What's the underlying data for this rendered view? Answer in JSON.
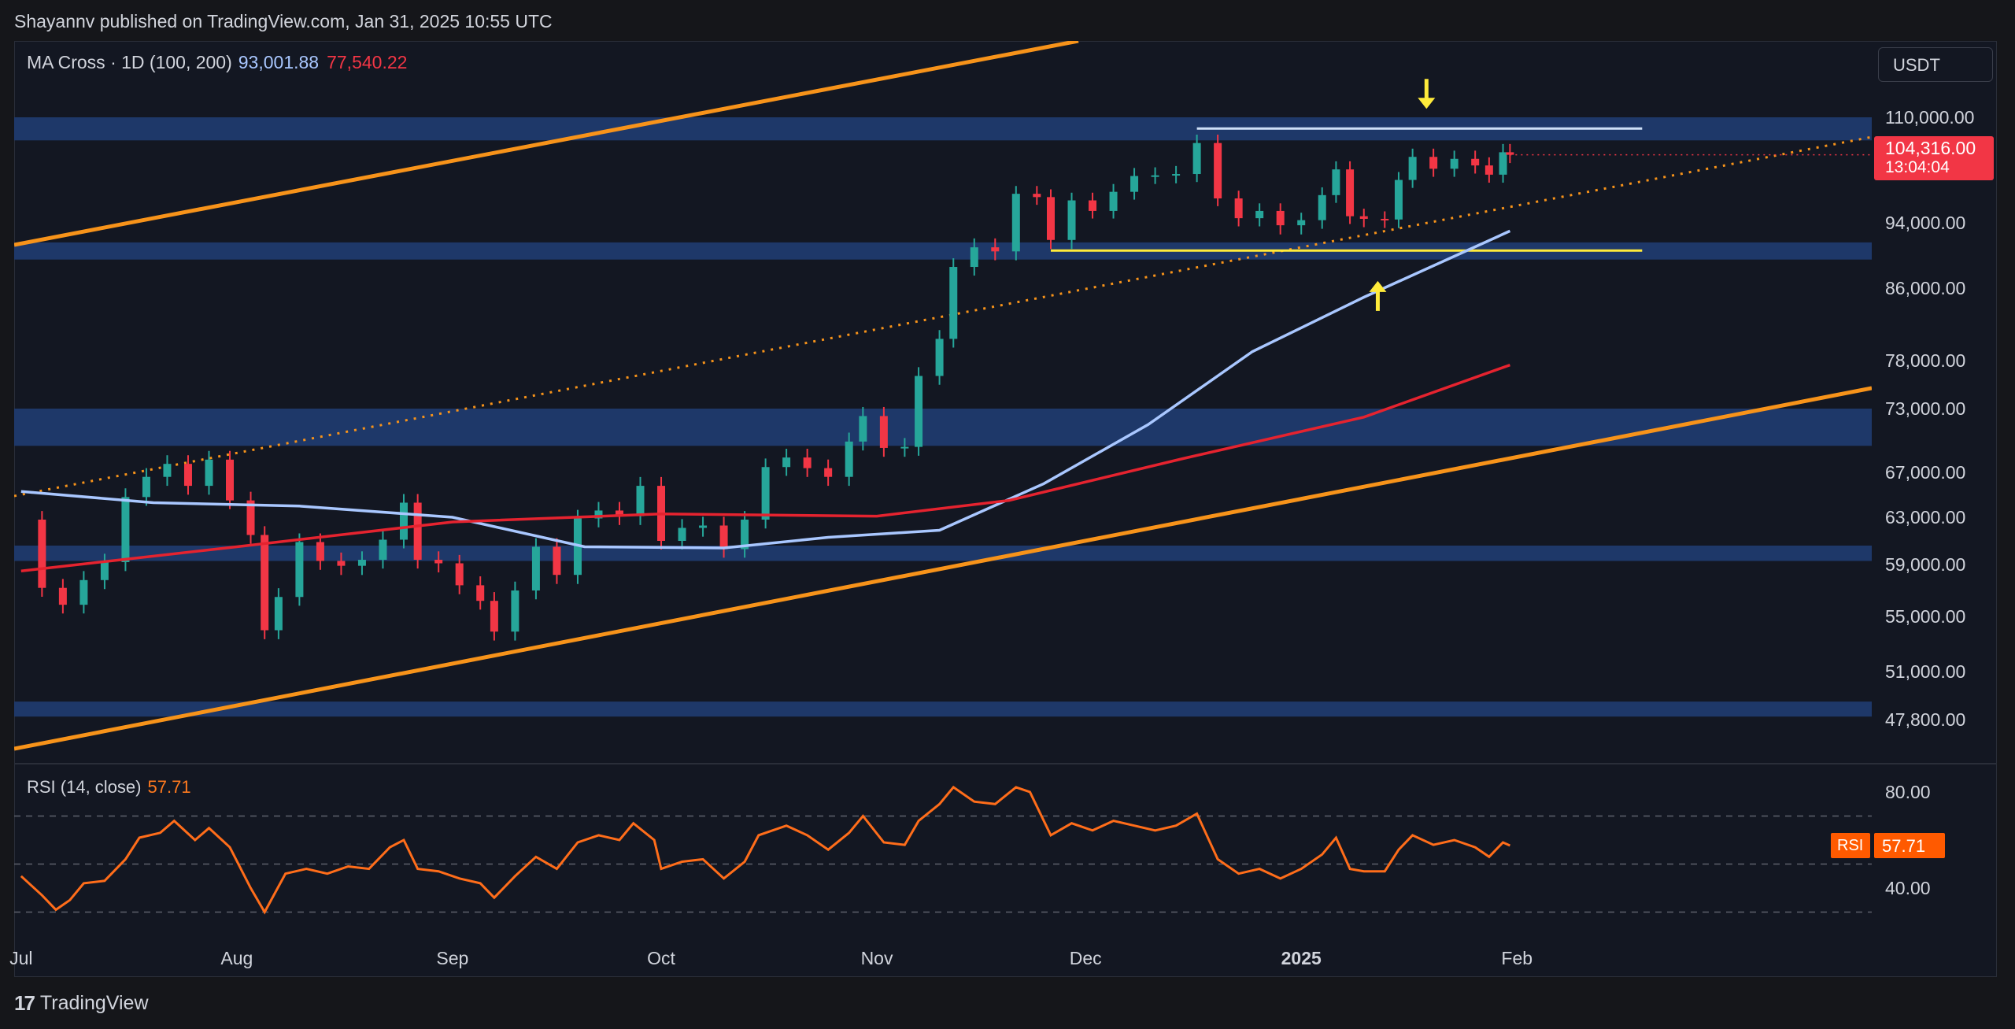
{
  "header": {
    "published_by": "Shayannv published on TradingView.com, Jan 31, 2025 10:55 UTC"
  },
  "legend": {
    "name": "MA Cross · 1D (100, 200)",
    "ma100_value": "93,001.88",
    "ma200_value": "77,540.22"
  },
  "currency_button": "USDT",
  "last_price": {
    "price": "104,316.00",
    "countdown": "13:04:04"
  },
  "rsi": {
    "name": "RSI (14, close)",
    "value": "57.71",
    "tag_label": "RSI",
    "tag_value": "57.71"
  },
  "footer": {
    "brand": "TradingView",
    "logo_glyph": "17"
  },
  "colors": {
    "up": "#26a69a",
    "down": "#f23645",
    "ma100": "#a9c7ff",
    "ma200": "#e5232f",
    "channel": "#f7931a",
    "zone": "#1f3a6e",
    "rsi_line": "#ff6d1a",
    "arrow": "#ffeb3b"
  },
  "chart_data": {
    "type": "candlestick",
    "x_ticks": [
      "Jul",
      "Aug",
      "Sep",
      "Oct",
      "Nov",
      "Dec",
      "2025",
      "Feb"
    ],
    "y_ticks": [
      "110,000.00",
      "94,000.00",
      "86,000.00",
      "78,000.00",
      "73,000.00",
      "67,000.00",
      "63,000.00",
      "59,000.00",
      "55,000.00",
      "51,000.00",
      "47,800.00"
    ],
    "y_tick_values": [
      110000,
      94000,
      86000,
      78000,
      73000,
      67000,
      63000,
      59000,
      55000,
      51000,
      47800
    ],
    "x_range": [
      "2024-06-30",
      "2025-03-24"
    ],
    "closes": [
      {
        "date": "2024-07-01",
        "close": 62800
      },
      {
        "date": "2024-07-04",
        "close": 57200
      },
      {
        "date": "2024-07-07",
        "close": 55900
      },
      {
        "date": "2024-07-10",
        "close": 57800
      },
      {
        "date": "2024-07-13",
        "close": 59200
      },
      {
        "date": "2024-07-16",
        "close": 64800
      },
      {
        "date": "2024-07-19",
        "close": 66600
      },
      {
        "date": "2024-07-22",
        "close": 67800
      },
      {
        "date": "2024-07-25",
        "close": 65800
      },
      {
        "date": "2024-07-28",
        "close": 68200
      },
      {
        "date": "2024-07-31",
        "close": 64500
      },
      {
        "date": "2024-08-03",
        "close": 61500
      },
      {
        "date": "2024-08-05",
        "close": 54000
      },
      {
        "date": "2024-08-07",
        "close": 56500
      },
      {
        "date": "2024-08-10",
        "close": 60900
      },
      {
        "date": "2024-08-13",
        "close": 59300
      },
      {
        "date": "2024-08-16",
        "close": 58900
      },
      {
        "date": "2024-08-19",
        "close": 59400
      },
      {
        "date": "2024-08-22",
        "close": 61100
      },
      {
        "date": "2024-08-25",
        "close": 64300
      },
      {
        "date": "2024-08-27",
        "close": 59400
      },
      {
        "date": "2024-08-30",
        "close": 59100
      },
      {
        "date": "2024-09-02",
        "close": 57400
      },
      {
        "date": "2024-09-05",
        "close": 56200
      },
      {
        "date": "2024-09-07",
        "close": 53900
      },
      {
        "date": "2024-09-10",
        "close": 57000
      },
      {
        "date": "2024-09-13",
        "close": 60500
      },
      {
        "date": "2024-09-16",
        "close": 58200
      },
      {
        "date": "2024-09-19",
        "close": 62900
      },
      {
        "date": "2024-09-22",
        "close": 63600
      },
      {
        "date": "2024-09-25",
        "close": 63100
      },
      {
        "date": "2024-09-28",
        "close": 65800
      },
      {
        "date": "2024-10-01",
        "close": 61000
      },
      {
        "date": "2024-10-04",
        "close": 62100
      },
      {
        "date": "2024-10-07",
        "close": 62300
      },
      {
        "date": "2024-10-10",
        "close": 60300
      },
      {
        "date": "2024-10-13",
        "close": 62800
      },
      {
        "date": "2024-10-16",
        "close": 67500
      },
      {
        "date": "2024-10-19",
        "close": 68400
      },
      {
        "date": "2024-10-22",
        "close": 67400
      },
      {
        "date": "2024-10-25",
        "close": 66600
      },
      {
        "date": "2024-10-28",
        "close": 69900
      },
      {
        "date": "2024-10-30",
        "close": 72300
      },
      {
        "date": "2024-11-02",
        "close": 69300
      },
      {
        "date": "2024-11-05",
        "close": 69400
      },
      {
        "date": "2024-11-07",
        "close": 76400
      },
      {
        "date": "2024-11-10",
        "close": 80400
      },
      {
        "date": "2024-11-12",
        "close": 88600
      },
      {
        "date": "2024-11-15",
        "close": 91000
      },
      {
        "date": "2024-11-18",
        "close": 90500
      },
      {
        "date": "2024-11-21",
        "close": 98400
      },
      {
        "date": "2024-11-24",
        "close": 97900
      },
      {
        "date": "2024-11-26",
        "close": 91900
      },
      {
        "date": "2024-11-29",
        "close": 97400
      },
      {
        "date": "2024-12-02",
        "close": 95800
      },
      {
        "date": "2024-12-05",
        "close": 98700
      },
      {
        "date": "2024-12-08",
        "close": 101100
      },
      {
        "date": "2024-12-11",
        "close": 101200
      },
      {
        "date": "2024-12-14",
        "close": 101400
      },
      {
        "date": "2024-12-17",
        "close": 106100
      },
      {
        "date": "2024-12-20",
        "close": 97700
      },
      {
        "date": "2024-12-23",
        "close": 94700
      },
      {
        "date": "2024-12-26",
        "close": 95800
      },
      {
        "date": "2024-12-29",
        "close": 93700
      },
      {
        "date": "2025-01-01",
        "close": 94400
      },
      {
        "date": "2025-01-04",
        "close": 98200
      },
      {
        "date": "2025-01-06",
        "close": 102100
      },
      {
        "date": "2025-01-08",
        "close": 95000
      },
      {
        "date": "2025-01-10",
        "close": 94600
      },
      {
        "date": "2025-01-13",
        "close": 94500
      },
      {
        "date": "2025-01-15",
        "close": 100500
      },
      {
        "date": "2025-01-17",
        "close": 104000
      },
      {
        "date": "2025-01-20",
        "close": 102200
      },
      {
        "date": "2025-01-23",
        "close": 103700
      },
      {
        "date": "2025-01-26",
        "close": 102700
      },
      {
        "date": "2025-01-28",
        "close": 101300
      },
      {
        "date": "2025-01-30",
        "close": 104700
      },
      {
        "date": "2025-01-31",
        "close": 104316
      }
    ],
    "ma100": [
      {
        "date": "2024-07-01",
        "value": 65300
      },
      {
        "date": "2024-07-20",
        "value": 64300
      },
      {
        "date": "2024-08-10",
        "value": 64000
      },
      {
        "date": "2024-09-01",
        "value": 63000
      },
      {
        "date": "2024-09-20",
        "value": 60500
      },
      {
        "date": "2024-10-10",
        "value": 60400
      },
      {
        "date": "2024-10-25",
        "value": 61300
      },
      {
        "date": "2024-11-10",
        "value": 61900
      },
      {
        "date": "2024-11-25",
        "value": 66000
      },
      {
        "date": "2024-12-10",
        "value": 71500
      },
      {
        "date": "2024-12-25",
        "value": 79000
      },
      {
        "date": "2025-01-10",
        "value": 85000
      },
      {
        "date": "2025-01-31",
        "value": 93002
      }
    ],
    "ma200": [
      {
        "date": "2024-07-01",
        "value": 58500
      },
      {
        "date": "2024-08-01",
        "value": 60500
      },
      {
        "date": "2024-09-01",
        "value": 62600
      },
      {
        "date": "2024-10-01",
        "value": 63300
      },
      {
        "date": "2024-11-01",
        "value": 63100
      },
      {
        "date": "2024-11-20",
        "value": 64500
      },
      {
        "date": "2024-12-15",
        "value": 68300
      },
      {
        "date": "2025-01-10",
        "value": 72200
      },
      {
        "date": "2025-01-31",
        "value": 77540
      }
    ],
    "zones": [
      [
        106500,
        110000
      ],
      [
        89500,
        91600
      ],
      [
        69500,
        73000
      ],
      [
        59300,
        60600
      ],
      [
        48000,
        49000
      ]
    ],
    "range_lines": [
      {
        "from": "2024-12-17",
        "to": "2025-02-19",
        "value": 108300,
        "color": "#cfe0f7"
      },
      {
        "from": "2024-11-26",
        "to": "2025-02-19",
        "value": 90600,
        "color": "#ffeb3b"
      }
    ],
    "rsi_ticks": [
      "80.00",
      "40.00"
    ],
    "rsi_tick_values": [
      80,
      40
    ],
    "rsi_levels": [
      70,
      50,
      30
    ],
    "rsi_values": [
      {
        "date": "2024-07-01",
        "v": 45
      },
      {
        "date": "2024-07-04",
        "v": 37
      },
      {
        "date": "2024-07-06",
        "v": 31
      },
      {
        "date": "2024-07-08",
        "v": 35
      },
      {
        "date": "2024-07-10",
        "v": 42
      },
      {
        "date": "2024-07-13",
        "v": 43
      },
      {
        "date": "2024-07-16",
        "v": 52
      },
      {
        "date": "2024-07-18",
        "v": 61
      },
      {
        "date": "2024-07-21",
        "v": 63
      },
      {
        "date": "2024-07-23",
        "v": 68
      },
      {
        "date": "2024-07-26",
        "v": 60
      },
      {
        "date": "2024-07-28",
        "v": 65
      },
      {
        "date": "2024-07-31",
        "v": 57
      },
      {
        "date": "2024-08-03",
        "v": 40
      },
      {
        "date": "2024-08-05",
        "v": 30
      },
      {
        "date": "2024-08-08",
        "v": 46
      },
      {
        "date": "2024-08-11",
        "v": 48
      },
      {
        "date": "2024-08-14",
        "v": 46
      },
      {
        "date": "2024-08-17",
        "v": 49
      },
      {
        "date": "2024-08-20",
        "v": 48
      },
      {
        "date": "2024-08-23",
        "v": 57
      },
      {
        "date": "2024-08-25",
        "v": 60
      },
      {
        "date": "2024-08-27",
        "v": 48
      },
      {
        "date": "2024-08-30",
        "v": 47
      },
      {
        "date": "2024-09-02",
        "v": 44
      },
      {
        "date": "2024-09-05",
        "v": 42
      },
      {
        "date": "2024-09-07",
        "v": 36
      },
      {
        "date": "2024-09-10",
        "v": 45
      },
      {
        "date": "2024-09-13",
        "v": 53
      },
      {
        "date": "2024-09-16",
        "v": 48
      },
      {
        "date": "2024-09-19",
        "v": 59
      },
      {
        "date": "2024-09-22",
        "v": 62
      },
      {
        "date": "2024-09-25",
        "v": 60
      },
      {
        "date": "2024-09-27",
        "v": 67
      },
      {
        "date": "2024-09-30",
        "v": 60
      },
      {
        "date": "2024-10-01",
        "v": 48
      },
      {
        "date": "2024-10-04",
        "v": 51
      },
      {
        "date": "2024-10-07",
        "v": 52
      },
      {
        "date": "2024-10-10",
        "v": 44
      },
      {
        "date": "2024-10-13",
        "v": 51
      },
      {
        "date": "2024-10-15",
        "v": 62
      },
      {
        "date": "2024-10-19",
        "v": 66
      },
      {
        "date": "2024-10-22",
        "v": 62
      },
      {
        "date": "2024-10-25",
        "v": 56
      },
      {
        "date": "2024-10-28",
        "v": 63
      },
      {
        "date": "2024-10-30",
        "v": 70
      },
      {
        "date": "2024-11-02",
        "v": 59
      },
      {
        "date": "2024-11-05",
        "v": 58
      },
      {
        "date": "2024-11-07",
        "v": 68
      },
      {
        "date": "2024-11-10",
        "v": 75
      },
      {
        "date": "2024-11-12",
        "v": 82
      },
      {
        "date": "2024-11-15",
        "v": 76
      },
      {
        "date": "2024-11-18",
        "v": 75
      },
      {
        "date": "2024-11-21",
        "v": 82
      },
      {
        "date": "2024-11-23",
        "v": 80
      },
      {
        "date": "2024-11-26",
        "v": 62
      },
      {
        "date": "2024-11-29",
        "v": 67
      },
      {
        "date": "2024-12-02",
        "v": 64
      },
      {
        "date": "2024-12-05",
        "v": 68
      },
      {
        "date": "2024-12-08",
        "v": 66
      },
      {
        "date": "2024-12-11",
        "v": 64
      },
      {
        "date": "2024-12-14",
        "v": 66
      },
      {
        "date": "2024-12-17",
        "v": 71
      },
      {
        "date": "2024-12-20",
        "v": 52
      },
      {
        "date": "2024-12-23",
        "v": 46
      },
      {
        "date": "2024-12-26",
        "v": 48
      },
      {
        "date": "2024-12-29",
        "v": 44
      },
      {
        "date": "2025-01-01",
        "v": 48
      },
      {
        "date": "2025-01-04",
        "v": 54
      },
      {
        "date": "2025-01-06",
        "v": 61
      },
      {
        "date": "2025-01-08",
        "v": 48
      },
      {
        "date": "2025-01-10",
        "v": 47
      },
      {
        "date": "2025-01-13",
        "v": 47
      },
      {
        "date": "2025-01-15",
        "v": 56
      },
      {
        "date": "2025-01-17",
        "v": 62
      },
      {
        "date": "2025-01-20",
        "v": 58
      },
      {
        "date": "2025-01-23",
        "v": 60
      },
      {
        "date": "2025-01-26",
        "v": 57
      },
      {
        "date": "2025-01-28",
        "v": 53
      },
      {
        "date": "2025-01-30",
        "v": 59
      },
      {
        "date": "2025-01-31",
        "v": 57.71
      }
    ]
  }
}
